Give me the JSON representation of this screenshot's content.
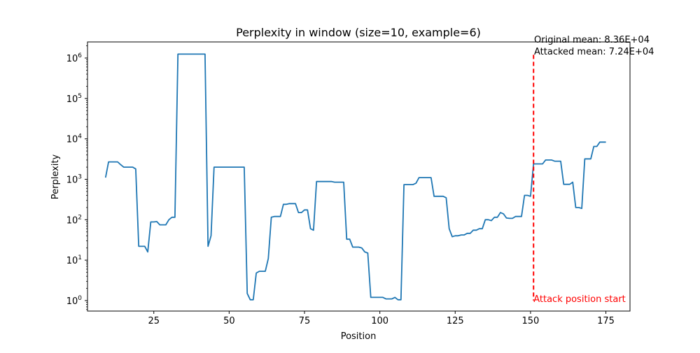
{
  "chart_data": {
    "type": "line",
    "title": "Perplexity in window (size=10, example=6)",
    "xlabel": "Position",
    "ylabel": "Perplexity",
    "y_scale": "log",
    "xlim": [
      3,
      183
    ],
    "ylim": [
      0.55,
      2500000
    ],
    "x_ticks": [
      25,
      50,
      75,
      100,
      125,
      150,
      175
    ],
    "y_tick_labels": [
      {
        "value": 1,
        "base": "10",
        "exp": "0"
      },
      {
        "value": 10,
        "base": "10",
        "exp": "1"
      },
      {
        "value": 100,
        "base": "10",
        "exp": "2"
      },
      {
        "value": 1000,
        "base": "10",
        "exp": "3"
      },
      {
        "value": 10000,
        "base": "10",
        "exp": "4"
      },
      {
        "value": 100000,
        "base": "10",
        "exp": "5"
      },
      {
        "value": 1000000,
        "base": "10",
        "exp": "6"
      }
    ],
    "series": [
      {
        "color": "#1f77b4",
        "x": [
          9,
          10,
          11,
          12,
          13,
          14,
          15,
          16,
          17,
          18,
          19,
          20,
          21,
          22,
          23,
          24,
          25,
          26,
          27,
          28,
          29,
          30,
          31,
          32,
          33,
          34,
          35,
          36,
          37,
          38,
          39,
          40,
          41,
          42,
          43,
          44,
          45,
          46,
          47,
          48,
          49,
          50,
          51,
          52,
          53,
          54,
          55,
          56,
          57,
          58,
          59,
          60,
          61,
          62,
          63,
          64,
          65,
          66,
          67,
          68,
          69,
          70,
          71,
          72,
          73,
          74,
          75,
          76,
          77,
          78,
          79,
          80,
          81,
          82,
          83,
          84,
          85,
          86,
          87,
          88,
          89,
          90,
          91,
          92,
          93,
          94,
          95,
          96,
          97,
          98,
          99,
          100,
          101,
          102,
          103,
          104,
          105,
          106,
          107,
          108,
          109,
          110,
          111,
          112,
          113,
          114,
          115,
          116,
          117,
          118,
          119,
          120,
          121,
          122,
          123,
          124,
          125,
          126,
          127,
          128,
          129,
          130,
          131,
          132,
          133,
          134,
          135,
          136,
          137,
          138,
          139,
          140,
          141,
          142,
          143,
          144,
          145,
          146,
          147,
          148,
          149,
          150,
          151,
          152,
          153,
          154,
          155,
          156,
          157,
          158,
          159,
          160,
          161,
          162,
          163,
          164,
          165,
          166,
          167,
          168,
          169,
          170,
          171,
          172,
          173,
          174,
          175
        ],
        "y": [
          1100,
          2700,
          2700,
          2700,
          2700,
          2300,
          2000,
          2000,
          2000,
          2000,
          1800,
          22,
          22,
          22,
          16,
          88,
          88,
          90,
          75,
          75,
          75,
          100,
          115,
          115,
          1250000,
          1250000,
          1250000,
          1250000,
          1250000,
          1250000,
          1250000,
          1250000,
          1250000,
          1250000,
          22,
          40,
          2000,
          2000,
          2000,
          2000,
          2000,
          2000,
          2000,
          2000,
          2000,
          2000,
          2000,
          1.5,
          1.05,
          1.05,
          4.8,
          5.3,
          5.3,
          5.3,
          11,
          115,
          120,
          120,
          120,
          240,
          240,
          250,
          250,
          250,
          150,
          150,
          175,
          175,
          60,
          55,
          880,
          880,
          880,
          880,
          880,
          880,
          850,
          850,
          850,
          850,
          33,
          33,
          21,
          21,
          21,
          20,
          16,
          15,
          1.2,
          1.2,
          1.2,
          1.2,
          1.2,
          1.1,
          1.1,
          1.1,
          1.2,
          1.05,
          1.05,
          740,
          740,
          740,
          740,
          800,
          1100,
          1100,
          1100,
          1100,
          1100,
          380,
          380,
          380,
          380,
          350,
          60,
          38,
          40,
          40,
          42,
          42,
          46,
          46,
          55,
          55,
          60,
          60,
          100,
          100,
          95,
          115,
          115,
          150,
          140,
          110,
          108,
          108,
          120,
          120,
          120,
          400,
          400,
          380,
          2400,
          2400,
          2400,
          2400,
          3000,
          3000,
          3000,
          2800,
          2800,
          2800,
          750,
          750,
          750,
          850,
          200,
          200,
          190,
          3200,
          3200,
          3200,
          6500,
          6500,
          8300,
          8300,
          8300
        ]
      }
    ],
    "vline": {
      "x": 151,
      "y_from": 1,
      "y_to": 1200000,
      "color": "#ff0000",
      "label": "Attack position start"
    },
    "annotations": {
      "original_mean": "Original mean: 8.36E+04",
      "attacked_mean": "Attacked mean: 7.24E+04"
    }
  }
}
